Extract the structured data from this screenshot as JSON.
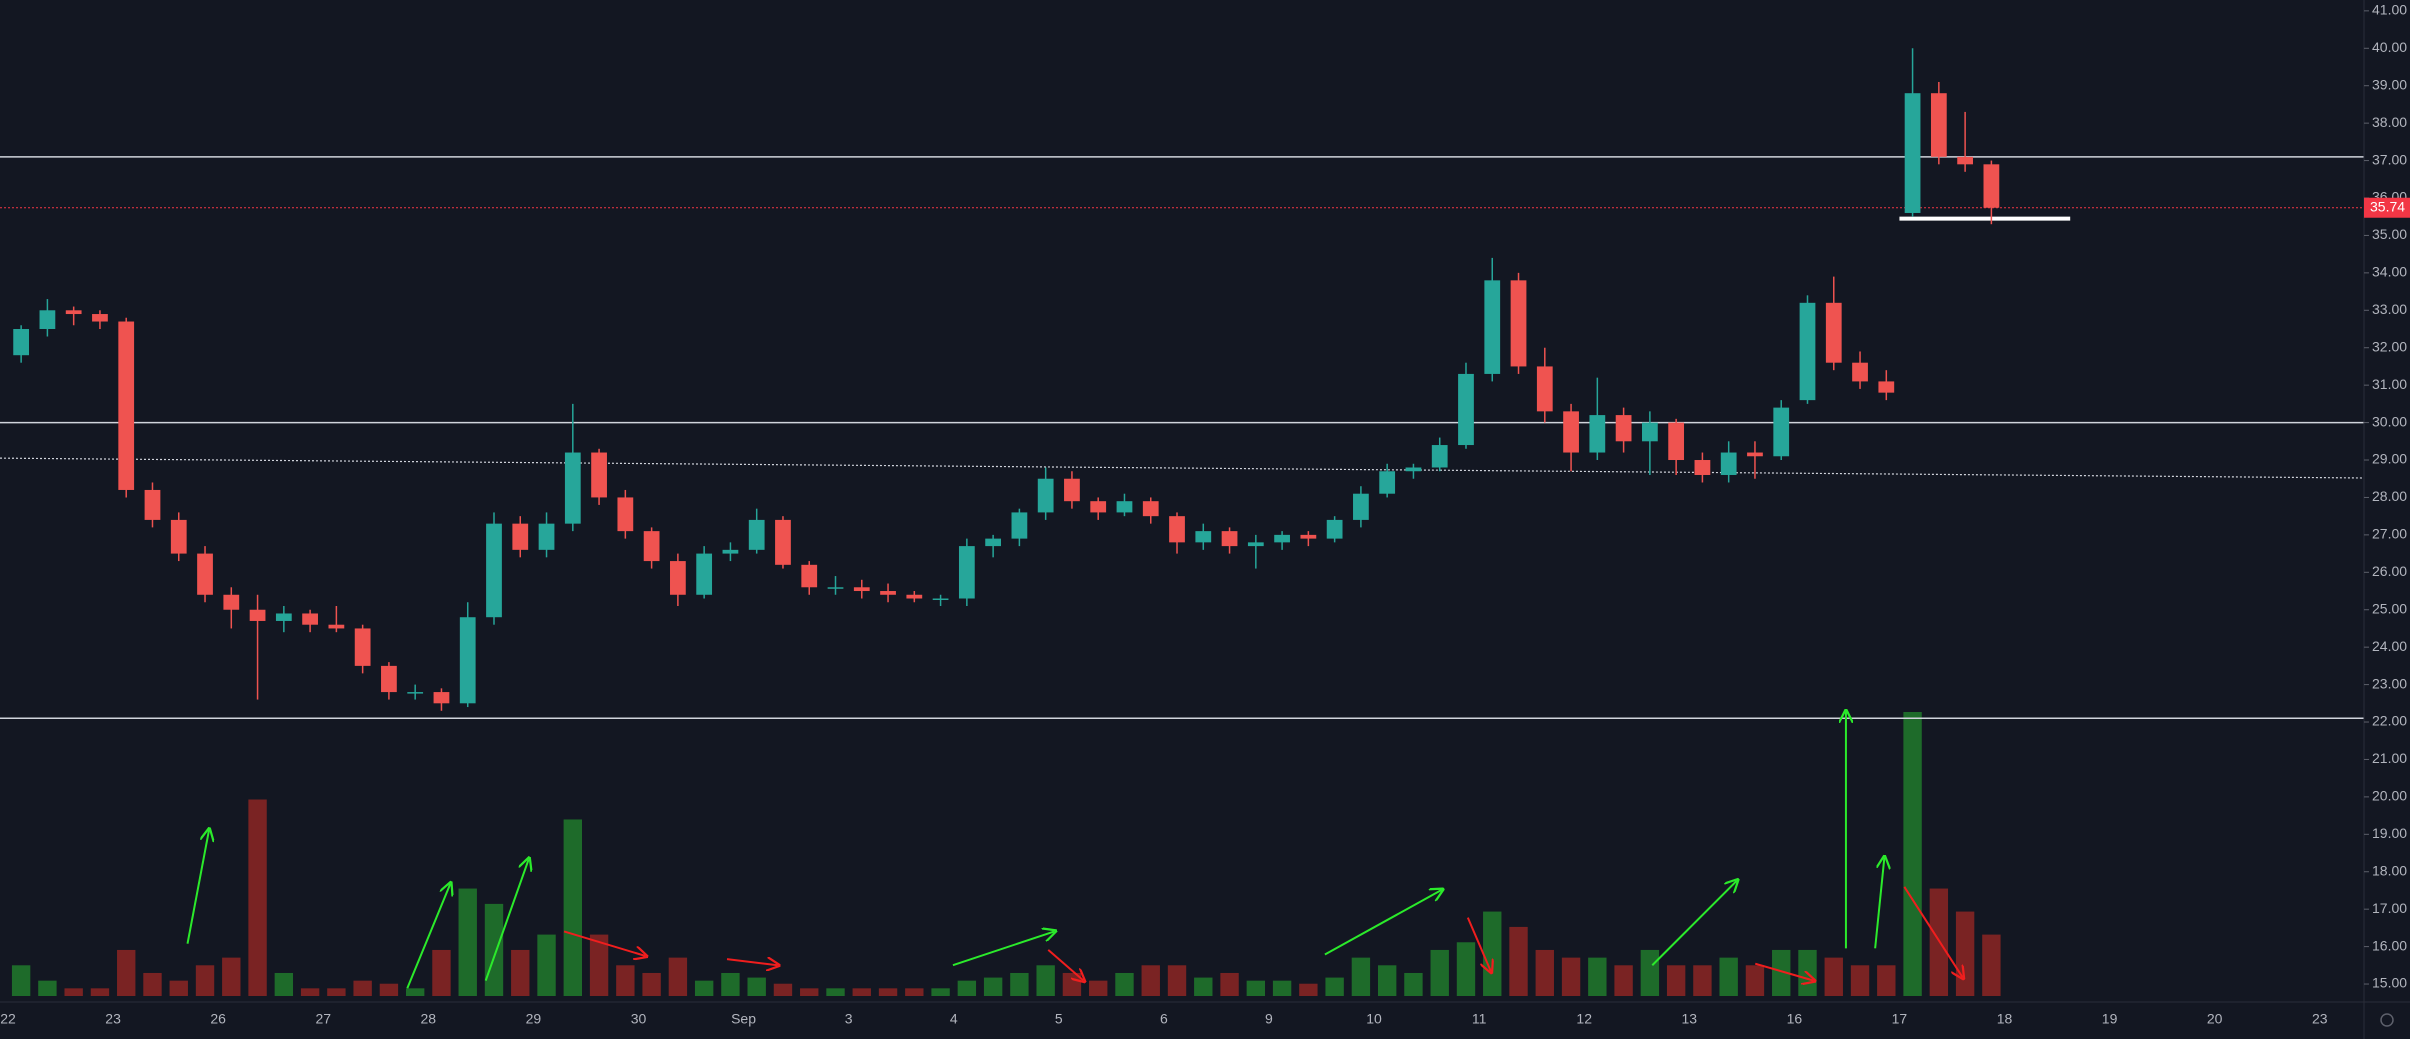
{
  "chart_data": {
    "type": "candlestick",
    "categories": [
      "22",
      null,
      null,
      null,
      "23",
      null,
      null,
      null,
      "26",
      null,
      null,
      null,
      "27",
      null,
      null,
      null,
      "28",
      null,
      null,
      null,
      "29",
      null,
      null,
      null,
      "30",
      null,
      null,
      null,
      "Sep",
      null,
      null,
      null,
      "3",
      null,
      null,
      null,
      "4",
      null,
      null,
      null,
      "5",
      null,
      null,
      null,
      "6",
      null,
      null,
      null,
      "9",
      null,
      null,
      null,
      "10",
      null,
      null,
      null,
      "11",
      null,
      null,
      null,
      "12",
      null,
      null,
      null,
      "13",
      null,
      null,
      null,
      "16",
      null,
      null,
      null,
      "17",
      null,
      null,
      null,
      "18",
      null,
      null,
      null,
      "19",
      null,
      null,
      null,
      "20",
      null,
      null,
      null,
      "23",
      null,
      null,
      null
    ],
    "open": [
      31.8,
      32.5,
      33.0,
      32.9,
      32.7,
      28.2,
      27.4,
      26.5,
      25.4,
      25.0,
      24.7,
      24.9,
      24.6,
      24.5,
      23.5,
      22.8,
      22.8,
      22.5,
      24.8,
      27.3,
      26.6,
      27.3,
      29.2,
      28.0,
      27.1,
      26.3,
      25.4,
      26.5,
      26.6,
      27.4,
      26.2,
      25.6,
      25.6,
      25.5,
      25.4,
      25.3,
      25.3,
      26.7,
      26.9,
      27.6,
      28.5,
      27.9,
      27.6,
      27.9,
      27.5,
      26.8,
      27.1,
      26.7,
      26.8,
      27.0,
      26.9,
      27.4,
      28.1,
      28.7,
      28.8,
      29.4,
      31.3,
      33.8,
      31.5,
      30.3,
      29.2,
      30.2,
      29.5,
      30.0,
      29.0,
      28.6,
      29.2,
      29.1,
      30.6,
      33.2,
      31.6,
      31.1,
      35.6,
      38.8,
      37.1,
      36.9,
      null,
      null,
      null,
      null,
      null,
      null,
      null,
      null,
      null,
      null,
      null,
      null,
      null,
      null,
      null,
      null
    ],
    "high": [
      32.6,
      33.3,
      33.1,
      33.0,
      32.8,
      28.4,
      27.6,
      26.7,
      25.6,
      25.4,
      25.1,
      25.0,
      25.1,
      24.6,
      23.6,
      23.0,
      22.9,
      25.2,
      27.6,
      27.5,
      27.6,
      30.5,
      29.3,
      28.2,
      27.2,
      26.5,
      26.7,
      26.8,
      27.7,
      27.5,
      26.3,
      25.9,
      25.8,
      25.7,
      25.5,
      25.4,
      26.9,
      27.0,
      27.7,
      28.8,
      28.7,
      28.0,
      28.1,
      28.0,
      27.6,
      27.3,
      27.2,
      27.0,
      27.1,
      27.1,
      27.5,
      28.3,
      28.9,
      28.9,
      29.6,
      31.6,
      34.4,
      34.0,
      32.0,
      30.5,
      31.2,
      30.4,
      30.3,
      30.1,
      29.2,
      29.5,
      29.5,
      30.6,
      33.4,
      33.9,
      31.9,
      31.4,
      40.0,
      39.1,
      38.3,
      37.0,
      null,
      null,
      null,
      null,
      null,
      null,
      null,
      null,
      null,
      null,
      null,
      null,
      null,
      null,
      null,
      null
    ],
    "low": [
      31.6,
      32.3,
      32.6,
      32.5,
      28.0,
      27.2,
      26.3,
      25.2,
      24.5,
      22.6,
      24.4,
      24.4,
      24.4,
      23.3,
      22.6,
      22.6,
      22.3,
      22.4,
      24.6,
      26.4,
      26.4,
      27.1,
      27.8,
      26.9,
      26.1,
      25.1,
      25.3,
      26.3,
      26.5,
      26.1,
      25.4,
      25.4,
      25.3,
      25.2,
      25.2,
      25.1,
      25.1,
      26.4,
      26.7,
      27.4,
      27.7,
      27.4,
      27.5,
      27.3,
      26.5,
      26.6,
      26.5,
      26.1,
      26.6,
      26.7,
      26.8,
      27.2,
      28.0,
      28.5,
      28.7,
      29.3,
      31.1,
      31.3,
      30.0,
      28.7,
      29.0,
      29.2,
      28.6,
      28.6,
      28.4,
      28.4,
      28.5,
      29.0,
      30.5,
      31.4,
      30.9,
      30.6,
      35.5,
      36.9,
      36.7,
      35.3,
      null,
      null,
      null,
      null,
      null,
      null,
      null,
      null,
      null,
      null,
      null,
      null,
      null,
      null,
      null,
      null
    ],
    "close": [
      32.5,
      33.0,
      32.9,
      32.7,
      28.2,
      27.4,
      26.5,
      25.4,
      25.0,
      24.7,
      24.9,
      24.6,
      24.5,
      23.5,
      22.8,
      22.8,
      22.5,
      24.8,
      27.3,
      26.6,
      27.3,
      29.2,
      28.0,
      27.1,
      26.3,
      25.4,
      26.5,
      26.6,
      27.4,
      26.2,
      25.6,
      25.6,
      25.5,
      25.4,
      25.3,
      25.3,
      26.7,
      26.9,
      27.6,
      28.5,
      27.9,
      27.6,
      27.9,
      27.5,
      26.8,
      27.1,
      26.7,
      26.8,
      27.0,
      26.9,
      27.4,
      28.1,
      28.7,
      28.8,
      29.4,
      31.3,
      33.8,
      31.5,
      30.3,
      29.2,
      30.2,
      29.5,
      30.0,
      29.0,
      28.6,
      29.2,
      29.1,
      30.4,
      33.2,
      31.6,
      31.1,
      30.8,
      38.8,
      37.1,
      36.9,
      35.74,
      null,
      null,
      null,
      null,
      null,
      null,
      null,
      null,
      null,
      null,
      null,
      null,
      null,
      null,
      null,
      null
    ],
    "volume": [
      20,
      10,
      5,
      5,
      30,
      15,
      10,
      20,
      25,
      128,
      15,
      5,
      5,
      10,
      8,
      5,
      30,
      70,
      60,
      30,
      40,
      115,
      40,
      20,
      15,
      25,
      10,
      15,
      12,
      8,
      5,
      5,
      5,
      5,
      5,
      5,
      10,
      12,
      15,
      20,
      15,
      10,
      15,
      20,
      20,
      12,
      15,
      10,
      10,
      8,
      12,
      25,
      20,
      15,
      30,
      35,
      55,
      45,
      30,
      25,
      25,
      20,
      30,
      20,
      20,
      25,
      20,
      30,
      30,
      25,
      20,
      20,
      185,
      70,
      55,
      40,
      null,
      null,
      null,
      null,
      null,
      null,
      null,
      null,
      null,
      null,
      null,
      null,
      null,
      null,
      null,
      null
    ],
    "up_color": "#26a69a",
    "down_color": "#ef5350",
    "volume_up_color": "#1e6b2a",
    "volume_down_color": "#7a2323",
    "ylim": [
      14.52,
      41.29
    ],
    "yticks": [
      {
        "value": 15,
        "label": "15.00"
      },
      {
        "value": 16,
        "label": "16.00"
      },
      {
        "value": 17,
        "label": "17.00"
      },
      {
        "value": 18,
        "label": "18.00"
      },
      {
        "value": 19,
        "label": "19.00"
      },
      {
        "value": 20,
        "label": "20.00"
      },
      {
        "value": 21,
        "label": "21.00"
      },
      {
        "value": 22,
        "label": "22.00"
      },
      {
        "value": 23,
        "label": "23.00"
      },
      {
        "value": 24,
        "label": "24.00"
      },
      {
        "value": 25,
        "label": "25.00"
      },
      {
        "value": 26,
        "label": "26.00"
      },
      {
        "value": 27,
        "label": "27.00"
      },
      {
        "value": 28,
        "label": "28.00"
      },
      {
        "value": 29,
        "label": "29.00"
      },
      {
        "value": 30,
        "label": "30.00"
      },
      {
        "value": 31,
        "label": "31.00"
      },
      {
        "value": 32,
        "label": "32.00"
      },
      {
        "value": 33,
        "label": "33.00"
      },
      {
        "value": 34,
        "label": "34.00"
      },
      {
        "value": 35,
        "label": "35.00"
      },
      {
        "value": 36,
        "label": "36.00"
      },
      {
        "value": 37,
        "label": "37.00"
      },
      {
        "value": 38,
        "label": "38.00"
      },
      {
        "value": 39,
        "label": "39.00"
      },
      {
        "value": 40,
        "label": "40.00"
      },
      {
        "value": 41,
        "label": "41.00"
      }
    ],
    "levels": [
      37.1,
      30.0,
      22.1
    ],
    "trendline": [
      29.05,
      28.52
    ],
    "support": 35.45,
    "last_price": 35.74,
    "last_price_color": "#f23645"
  }
}
